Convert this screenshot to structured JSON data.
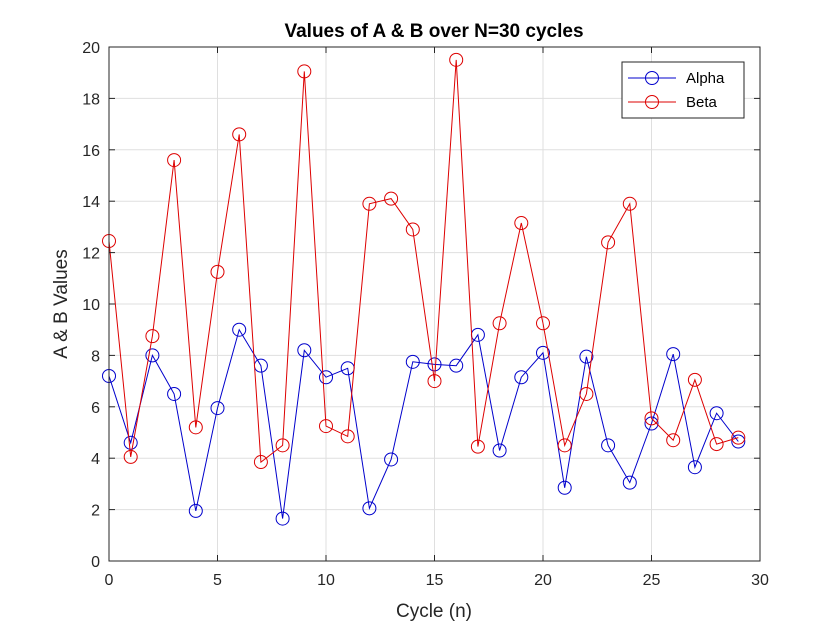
{
  "chart_data": {
    "type": "line",
    "title": "Values of A & B over N=30 cycles",
    "xlabel": "Cycle (n)",
    "ylabel": "A & B Values",
    "xlim": [
      0,
      30
    ],
    "ylim": [
      0,
      20
    ],
    "xticks": [
      "0",
      "5",
      "10",
      "15",
      "20",
      "25",
      "30"
    ],
    "yticks": [
      "0",
      "2",
      "4",
      "6",
      "8",
      "10",
      "12",
      "14",
      "16",
      "18",
      "20"
    ],
    "grid": true,
    "legend_position": "top-right",
    "marker": "circle",
    "x": [
      0,
      1,
      2,
      3,
      4,
      5,
      6,
      7,
      8,
      9,
      10,
      11,
      12,
      13,
      14,
      15,
      16,
      17,
      18,
      19,
      20,
      21,
      22,
      23,
      24,
      25,
      26,
      27,
      28,
      29
    ],
    "series": [
      {
        "name": "Alpha",
        "color": "#0000cc",
        "values": [
          7.2,
          4.6,
          8.0,
          6.5,
          1.95,
          5.95,
          9.0,
          7.6,
          1.65,
          8.2,
          7.15,
          7.5,
          2.05,
          3.95,
          7.75,
          7.65,
          7.6,
          8.8,
          4.3,
          7.15,
          8.1,
          2.85,
          7.95,
          4.5,
          3.05,
          5.35,
          8.05,
          3.65,
          5.75,
          4.65
        ]
      },
      {
        "name": "Beta",
        "color": "#dd0000",
        "values": [
          12.45,
          4.05,
          8.75,
          15.6,
          5.2,
          11.25,
          16.6,
          3.85,
          4.5,
          19.05,
          5.25,
          4.85,
          13.9,
          14.1,
          12.9,
          7.0,
          19.5,
          4.45,
          9.25,
          13.15,
          9.25,
          4.5,
          6.5,
          12.4,
          13.9,
          5.55,
          4.7,
          7.05,
          4.55,
          4.8
        ]
      }
    ]
  }
}
